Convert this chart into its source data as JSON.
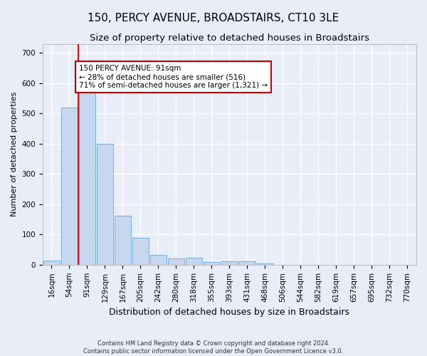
{
  "title": "150, PERCY AVENUE, BROADSTAIRS, CT10 3LE",
  "subtitle": "Size of property relative to detached houses in Broadstairs",
  "xlabel": "Distribution of detached houses by size in Broadstairs",
  "ylabel": "Number of detached properties",
  "footnote1": "Contains HM Land Registry data © Crown copyright and database right 2024.",
  "footnote2": "Contains public sector information licensed under the Open Government Licence v3.0.",
  "bar_labels": [
    "16sqm",
    "54sqm",
    "91sqm",
    "129sqm",
    "167sqm",
    "205sqm",
    "242sqm",
    "280sqm",
    "318sqm",
    "355sqm",
    "393sqm",
    "431sqm",
    "468sqm",
    "506sqm",
    "544sqm",
    "582sqm",
    "619sqm",
    "657sqm",
    "695sqm",
    "732sqm",
    "770sqm"
  ],
  "bar_values": [
    13,
    520,
    580,
    400,
    163,
    88,
    32,
    20,
    22,
    8,
    12,
    12,
    5,
    0,
    0,
    0,
    0,
    0,
    0,
    0,
    0
  ],
  "bar_color": "#c5d8f0",
  "bar_edge_color": "#7aaed6",
  "red_line_index": 2,
  "annotation_text": "150 PERCY AVENUE: 91sqm\n← 28% of detached houses are smaller (516)\n71% of semi-detached houses are larger (1,321) →",
  "annotation_box_facecolor": "#ffffff",
  "annotation_box_edgecolor": "#cc0000",
  "ylim": [
    0,
    730
  ],
  "yticks": [
    0,
    100,
    200,
    300,
    400,
    500,
    600,
    700
  ],
  "bg_color": "#e8edf8",
  "plot_bg_color": "#e8edf8",
  "grid_color": "#ffffff",
  "title_fontsize": 11,
  "subtitle_fontsize": 9.5,
  "xlabel_fontsize": 9,
  "ylabel_fontsize": 8,
  "tick_fontsize": 7.5,
  "annot_fontsize": 7.5,
  "footnote_fontsize": 6
}
